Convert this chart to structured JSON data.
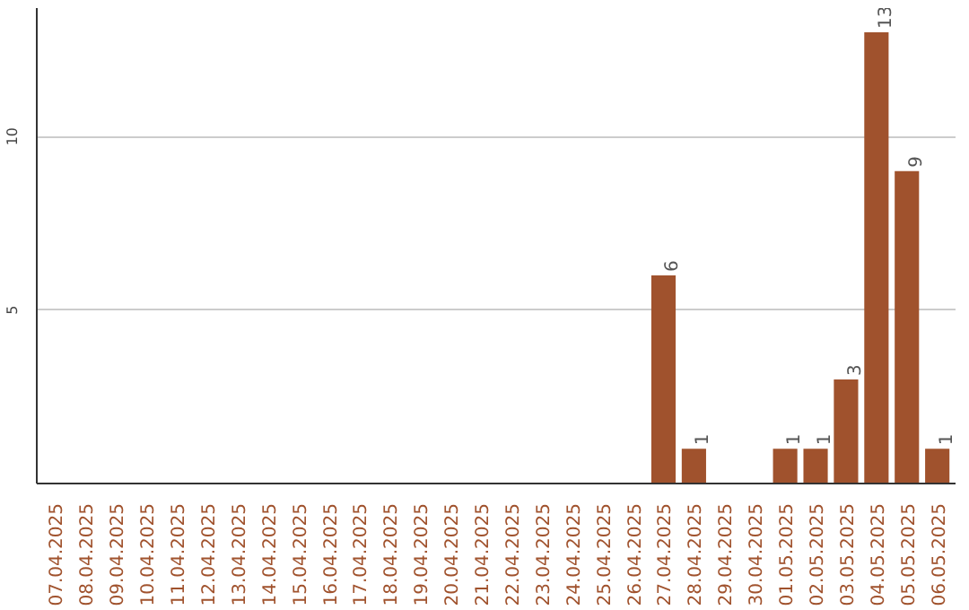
{
  "chart_data": {
    "type": "bar",
    "categories": [
      "07.04.2025",
      "08.04.2025",
      "09.04.2025",
      "10.04.2025",
      "11.04.2025",
      "12.04.2025",
      "13.04.2025",
      "14.04.2025",
      "15.04.2025",
      "16.04.2025",
      "17.04.2025",
      "18.04.2025",
      "19.04.2025",
      "20.04.2025",
      "21.04.2025",
      "22.04.2025",
      "23.04.2025",
      "24.04.2025",
      "25.04.2025",
      "26.04.2025",
      "27.04.2025",
      "28.04.2025",
      "29.04.2025",
      "30.04.2025",
      "01.05.2025",
      "02.05.2025",
      "03.05.2025",
      "04.05.2025",
      "05.05.2025",
      "06.05.2025"
    ],
    "values": [
      0,
      0,
      0,
      0,
      0,
      0,
      0,
      0,
      0,
      0,
      0,
      0,
      0,
      0,
      0,
      0,
      0,
      0,
      0,
      0,
      6,
      1,
      0,
      0,
      1,
      1,
      3,
      13,
      9,
      1
    ],
    "value_labels": [
      null,
      null,
      null,
      null,
      null,
      null,
      null,
      null,
      null,
      null,
      null,
      null,
      null,
      null,
      null,
      null,
      null,
      null,
      null,
      null,
      "6",
      "1",
      null,
      null,
      "1",
      "1",
      "3",
      "13",
      "9",
      "1"
    ],
    "color": "#a0522d",
    "ylim": [
      0,
      13.7
    ],
    "yticks": [
      5,
      10
    ],
    "grid": "y"
  }
}
